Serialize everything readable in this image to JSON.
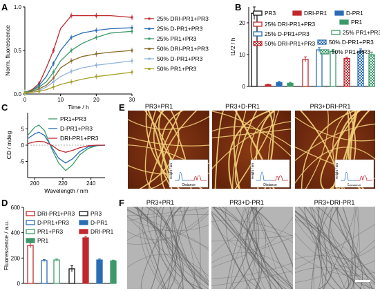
{
  "colors": {
    "c1": "#c0282d",
    "c2": "#2a6db5",
    "c3": "#3c9a6a",
    "c4": "#8a6a2a",
    "c5": "#8fb3d9",
    "c6": "#a9a12a",
    "afmBg": "#7a2e10",
    "fiber": "#f2d27a",
    "tem": "#b5b5b5"
  },
  "panel_labels": {
    "A": "A",
    "B": "B",
    "C": "C",
    "D": "D",
    "E": "E",
    "F": "F"
  },
  "chart_data": [
    {
      "panel": "A",
      "type": "line",
      "ylabel": "Norm. fluorescence",
      "xlabel": "Time / h",
      "xlim": [
        0,
        30
      ],
      "ylim": [
        0,
        1.0
      ],
      "xticks": [
        "0",
        "10",
        "20",
        "30"
      ],
      "yticks": [
        "0.0",
        "0.5",
        "1.0"
      ],
      "series": [
        {
          "name": "25% DRI-PR1+PR3",
          "color": "#c0282d",
          "x": [
            0,
            2,
            4,
            6,
            8,
            10,
            13,
            16,
            20,
            24,
            30
          ],
          "y": [
            0.02,
            0.05,
            0.12,
            0.3,
            0.5,
            0.75,
            0.9,
            0.9,
            0.9,
            0.9,
            0.88
          ]
        },
        {
          "name": "25% D-PR1+PR3",
          "color": "#2a6db5",
          "x": [
            0,
            2,
            4,
            6,
            8,
            10,
            13,
            16,
            20,
            24,
            30
          ],
          "y": [
            0.02,
            0.04,
            0.1,
            0.2,
            0.35,
            0.5,
            0.65,
            0.7,
            0.73,
            0.75,
            0.76
          ]
        },
        {
          "name": "25% PR1+PR3",
          "color": "#3c9a6a",
          "x": [
            0,
            2,
            4,
            6,
            8,
            10,
            13,
            16,
            20,
            24,
            30
          ],
          "y": [
            0.02,
            0.04,
            0.08,
            0.14,
            0.25,
            0.38,
            0.5,
            0.58,
            0.65,
            0.7,
            0.72
          ]
        },
        {
          "name": "50% DRI-PR1+PR3",
          "color": "#8a6a2a",
          "x": [
            0,
            2,
            4,
            6,
            8,
            10,
            13,
            16,
            20,
            24,
            30
          ],
          "y": [
            0.01,
            0.03,
            0.06,
            0.1,
            0.18,
            0.3,
            0.38,
            0.43,
            0.46,
            0.48,
            0.5
          ]
        },
        {
          "name": "50% D-PR1+PR3",
          "color": "#8fb3d9",
          "x": [
            0,
            2,
            4,
            6,
            8,
            10,
            13,
            16,
            20,
            24,
            30
          ],
          "y": [
            0.01,
            0.02,
            0.04,
            0.08,
            0.14,
            0.2,
            0.26,
            0.3,
            0.33,
            0.35,
            0.38
          ]
        },
        {
          "name": "50% PR1+PR3",
          "color": "#a9a12a",
          "x": [
            0,
            2,
            4,
            6,
            8,
            10,
            13,
            16,
            20,
            24,
            30
          ],
          "y": [
            0.01,
            0.02,
            0.03,
            0.05,
            0.08,
            0.11,
            0.14,
            0.17,
            0.2,
            0.22,
            0.25
          ]
        }
      ]
    },
    {
      "panel": "B",
      "type": "bar",
      "ylabel": "t1/2 / h",
      "ylim": [
        0,
        25
      ],
      "yticks": [
        "0",
        "10",
        "20"
      ],
      "categories": [
        "PR3",
        "DRI-PR1",
        "D-PR1",
        "PR1",
        "25% DRI-PR1+PR3",
        "25% D-PR1+PR3",
        "25% PR1+PR3",
        "50% DRI-PR1+PR3",
        "50% D-PR1+PR3",
        "50% PR1+PR3"
      ],
      "values": [
        23,
        0.5,
        1.2,
        1.0,
        8.5,
        11.5,
        11.0,
        8.8,
        11.0,
        10.0
      ],
      "errors": [
        2,
        0.2,
        0.4,
        0.3,
        0.8,
        0.7,
        0.6,
        0.4,
        0.8,
        0.8
      ],
      "colors": [
        "#111111",
        "#c0282d",
        "#2a6db5",
        "#3c9a6a",
        "#c0282d",
        "#2a6db5",
        "#3c9a6a",
        "#c0282d",
        "#2a6db5",
        "#3c9a6a"
      ],
      "styles": [
        "hollow",
        "solid",
        "solid",
        "solid",
        "hollow",
        "hollow",
        "hollow",
        "checker",
        "checker",
        "checker"
      ],
      "legend": [
        "PR3",
        "DRI-PR1",
        "D-PR1",
        "PR1",
        "25% DRI-PR1+PR3",
        "25% PR1+PR3",
        "25% D-PR1+PR3",
        "50% D-PR1+PR3",
        "50% DRI-PR1+PR3",
        "50% PR1+PR3"
      ]
    },
    {
      "panel": "C",
      "type": "line",
      "ylabel": "CD / mdeg",
      "xlabel": "Wavelength / nm",
      "xlim": [
        195,
        250
      ],
      "ylim": [
        -10,
        10
      ],
      "xticks": [
        "200",
        "220",
        "240"
      ],
      "yticks": [
        "-5",
        "0",
        "5"
      ],
      "series": [
        {
          "name": "PR1+PR3",
          "color": "#3c9a6a",
          "x": [
            195,
            200,
            203,
            207,
            212,
            217,
            222,
            227,
            232,
            238,
            244,
            250
          ],
          "y": [
            3,
            5.5,
            6.2,
            4.5,
            -1,
            -5.5,
            -7.8,
            -6,
            -3,
            -1,
            -0.2,
            0
          ]
        },
        {
          "name": "D-PR1+PR3",
          "color": "#2a6db5",
          "x": [
            195,
            200,
            203,
            207,
            212,
            217,
            222,
            227,
            232,
            238,
            244,
            250
          ],
          "y": [
            2,
            3.5,
            4,
            3,
            -0.5,
            -4,
            -5.5,
            -4.2,
            -2,
            -0.5,
            -0.1,
            0
          ]
        },
        {
          "name": "DRI-PR1+PR3",
          "color": "#c0282d",
          "x": [
            195,
            200,
            203,
            207,
            212,
            217,
            222,
            227,
            232,
            238,
            244,
            250
          ],
          "y": [
            0.5,
            1,
            1.2,
            1,
            0,
            -1.5,
            -2.2,
            -1.6,
            -0.8,
            -0.2,
            0,
            0
          ]
        }
      ]
    },
    {
      "panel": "D",
      "type": "bar",
      "ylabel": "Fluorescence / a.u.",
      "ylim": [
        0,
        600
      ],
      "yticks": [
        "0",
        "200",
        "400",
        "600"
      ],
      "categories": [
        "DRI-PR1+PR3",
        "D-PR1+PR3",
        "PR1+PR3",
        "PR3",
        "DRI-PR1",
        "D-PR1",
        "PR1"
      ],
      "values": [
        300,
        180,
        185,
        115,
        360,
        185,
        178
      ],
      "errors": [
        20,
        8,
        8,
        25,
        12,
        8,
        6
      ],
      "colors": [
        "#c0282d",
        "#2a6db5",
        "#3c9a6a",
        "#111111",
        "#c0282d",
        "#2a6db5",
        "#3c9a6a"
      ],
      "styles": [
        "hollow",
        "hollow",
        "hollow",
        "hollow",
        "solid",
        "solid",
        "solid"
      ]
    }
  ],
  "panelE": {
    "titles": [
      "PR3+PR1",
      "PR3+D-PR1",
      "PR3+DRI-PR1"
    ],
    "inset_xlabel": "Distance",
    "inset_ylabel": "Height / nm"
  },
  "panelF": {
    "titles": [
      "PR3+PR1",
      "PR3+D-PR1",
      "PR3+DRI-PR1"
    ]
  }
}
